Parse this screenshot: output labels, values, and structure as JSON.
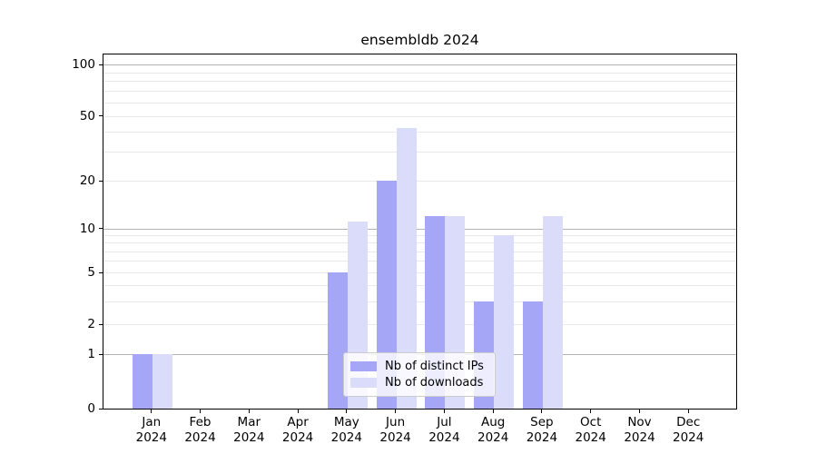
{
  "title": "ensembldb 2024",
  "chart_data": {
    "type": "bar",
    "title": "ensembldb 2024",
    "categories": [
      "Jan 2024",
      "Feb 2024",
      "Mar 2024",
      "Apr 2024",
      "May 2024",
      "Jun 2024",
      "Jul 2024",
      "Aug 2024",
      "Sep 2024",
      "Oct 2024",
      "Nov 2024",
      "Dec 2024"
    ],
    "series": [
      {
        "name": "Nb of distinct IPs",
        "color": "#a6a6f6",
        "values": [
          1,
          0,
          0,
          0,
          5,
          20,
          12,
          3,
          3,
          0,
          0,
          0
        ]
      },
      {
        "name": "Nb of downloads",
        "color": "#dbdbfa",
        "values": [
          1,
          0,
          0,
          0,
          11,
          42,
          12,
          9,
          12,
          0,
          0,
          0
        ]
      }
    ],
    "ylabel": "",
    "xlabel": "",
    "yscale": "symlog-like",
    "ylim": [
      0,
      115
    ],
    "yticks": [
      0,
      1,
      2,
      5,
      10,
      20,
      50,
      100
    ],
    "major_gridlines": [
      1,
      10,
      100
    ],
    "minor_gridlines": [
      2,
      3,
      4,
      5,
      6,
      7,
      8,
      9,
      20,
      30,
      40,
      50,
      60,
      70,
      80,
      90
    ],
    "grid": true,
    "legend_position": "lower center",
    "colors": {
      "bar_distinct_ips": "#a6a6f6",
      "bar_downloads": "#dbdbfa",
      "gridline_major": "#b3b3b3",
      "gridline_minor": "#e9e9e9",
      "spine": "#000000",
      "background": "#ffffff",
      "legend_border": "#cccccc"
    }
  },
  "legend": {
    "items": [
      {
        "label": "Nb of distinct IPs",
        "color": "#a6a6f6"
      },
      {
        "label": "Nb of downloads",
        "color": "#dbdbfa"
      }
    ]
  }
}
